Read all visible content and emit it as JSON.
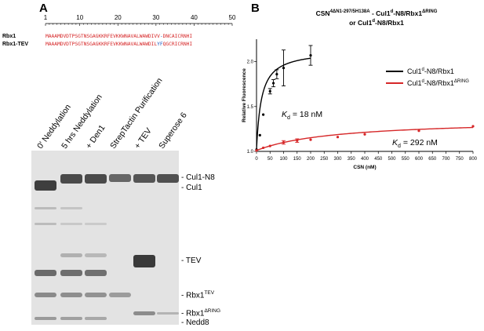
{
  "panel_a": {
    "letter": "A",
    "ruler_ticks": [
      "1",
      "10",
      "20",
      "30",
      "40",
      "50"
    ],
    "sequences": [
      {
        "label": "Rbx1",
        "segments": [
          {
            "text": "MAAAMDVDTPSGTNSGAGKKRFEVKKWNAVALWAWDIVV",
            "color": "#d62728"
          },
          {
            "text": "-",
            "color": "#1f5bc4"
          },
          {
            "text": "DNCAICRNHI",
            "color": "#d62728"
          }
        ]
      },
      {
        "label": "Rbx1-TEV",
        "segments": [
          {
            "text": "MAAAMDVDTPSGTNSGAGKKRFEVKKWNAVALWAWDIL",
            "color": "#d62728"
          },
          {
            "text": "YF",
            "color": "#1f5bc4"
          },
          {
            "text": "QG",
            "color": "#d62728"
          },
          {
            "text": "CRICRNHI",
            "color": "#d62728"
          }
        ]
      }
    ],
    "lane_labels": [
      "0' Neddylation",
      "5 hrs Neddylation",
      "+ Den1",
      "StrepTactin Purification",
      "+ TEV",
      "Superose 6"
    ],
    "band_labels": [
      {
        "main": "- Cul1-N8",
        "sup": ""
      },
      {
        "main": "- Cul1",
        "sup": ""
      },
      {
        "main": "- TEV",
        "sup": ""
      },
      {
        "main": "- Rbx1",
        "sup": "TEV"
      },
      {
        "main": "- Rbx1",
        "sup": "ΔRING"
      },
      {
        "main": "- Nedd8",
        "sup": ""
      }
    ]
  },
  "panel_b": {
    "letter": "B",
    "title_line1_pre": "CSN",
    "title_line1_sup": "4ΔN1-297/5H138A",
    "title_line1_post": " - Cul1",
    "title_line1_sup2": "d",
    "title_line1_post2": "-N8/Rbx1",
    "title_line1_sup3": "ΔRING",
    "title_line2_pre": "or Cul1",
    "title_line2_sup": "d",
    "title_line2_post": "-N8/Rbx1",
    "kd_black_sym": "K",
    "kd_black_sub": "d",
    "kd_black_val": " = 18 nM",
    "kd_red_sym": "K",
    "kd_red_sub": "d",
    "kd_red_val": " = 292 nM"
  },
  "chart_data": {
    "type": "scatter",
    "xlabel": "CSN (nM)",
    "ylabel": "Relative Fluorescence",
    "xlim": [
      0,
      800
    ],
    "ylim": [
      1.0,
      2.25
    ],
    "x_ticks": [
      0,
      50,
      100,
      150,
      200,
      250,
      300,
      350,
      400,
      450,
      500,
      550,
      600,
      650,
      700,
      750,
      800
    ],
    "y_ticks": [
      1.0,
      1.5,
      2.0
    ],
    "legend_position": "right",
    "series": [
      {
        "name": "Cul1d-N8/Rbx1",
        "name_pre": "Cul1",
        "name_sup": "d",
        "name_post": "-N8/Rbx1",
        "name_sup2": "",
        "color": "#000000",
        "kd": 18,
        "x": [
          0,
          12.5,
          25,
          50,
          62.5,
          75,
          100,
          200
        ],
        "y": [
          1.02,
          1.18,
          1.41,
          1.67,
          1.76,
          1.86,
          1.93,
          2.07
        ],
        "err": [
          0,
          0,
          0,
          0.03,
          0.04,
          0.05,
          0.2,
          0.11
        ]
      },
      {
        "name": "Cul1d-N8/Rbx1ΔRING",
        "name_pre": "Cul1",
        "name_sup": "d",
        "name_post": "-N8/Rbx1",
        "name_sup2": "ΔRING",
        "color": "#d62728",
        "kd": 292,
        "x": [
          0,
          25,
          50,
          100,
          150,
          200,
          300,
          400,
          600,
          800
        ],
        "y": [
          1.01,
          1.04,
          1.06,
          1.1,
          1.12,
          1.13,
          1.16,
          1.19,
          1.23,
          1.28
        ],
        "err": [
          0,
          0,
          0,
          0.02,
          0.02,
          0,
          0,
          0,
          0,
          0
        ]
      }
    ]
  }
}
